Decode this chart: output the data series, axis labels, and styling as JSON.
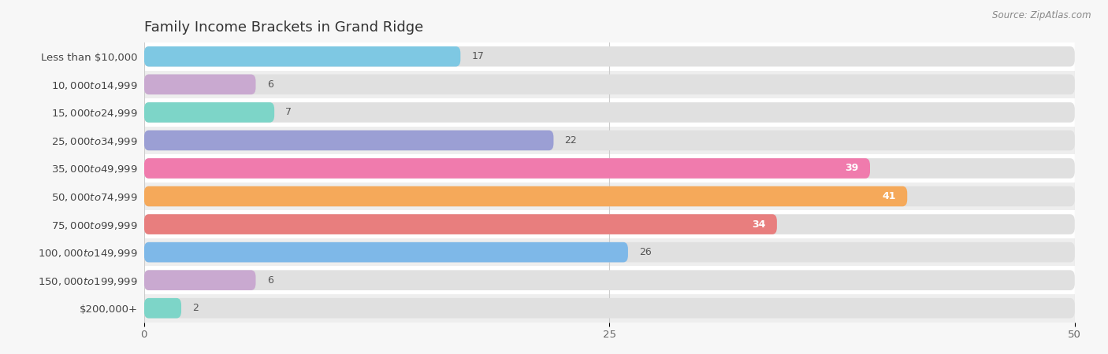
{
  "title": "Family Income Brackets in Grand Ridge",
  "source": "Source: ZipAtlas.com",
  "categories": [
    "Less than $10,000",
    "$10,000 to $14,999",
    "$15,000 to $24,999",
    "$25,000 to $34,999",
    "$35,000 to $49,999",
    "$50,000 to $74,999",
    "$75,000 to $99,999",
    "$100,000 to $149,999",
    "$150,000 to $199,999",
    "$200,000+"
  ],
  "values": [
    17,
    6,
    7,
    22,
    39,
    41,
    34,
    26,
    6,
    2
  ],
  "bar_colors": [
    "#7EC8E3",
    "#C9A9D0",
    "#7DD5C8",
    "#9B9FD4",
    "#F07BAD",
    "#F5A95A",
    "#E87E7E",
    "#7EB8E8",
    "#C9A9D0",
    "#7DD5C8"
  ],
  "xlim": [
    0,
    50
  ],
  "xticks": [
    0,
    25,
    50
  ],
  "background_color": "#f7f7f7",
  "row_colors": [
    "#ffffff",
    "#eeeeee"
  ],
  "bar_background_color": "#e0e0e0",
  "title_fontsize": 13,
  "label_fontsize": 9.5,
  "value_fontsize": 9
}
